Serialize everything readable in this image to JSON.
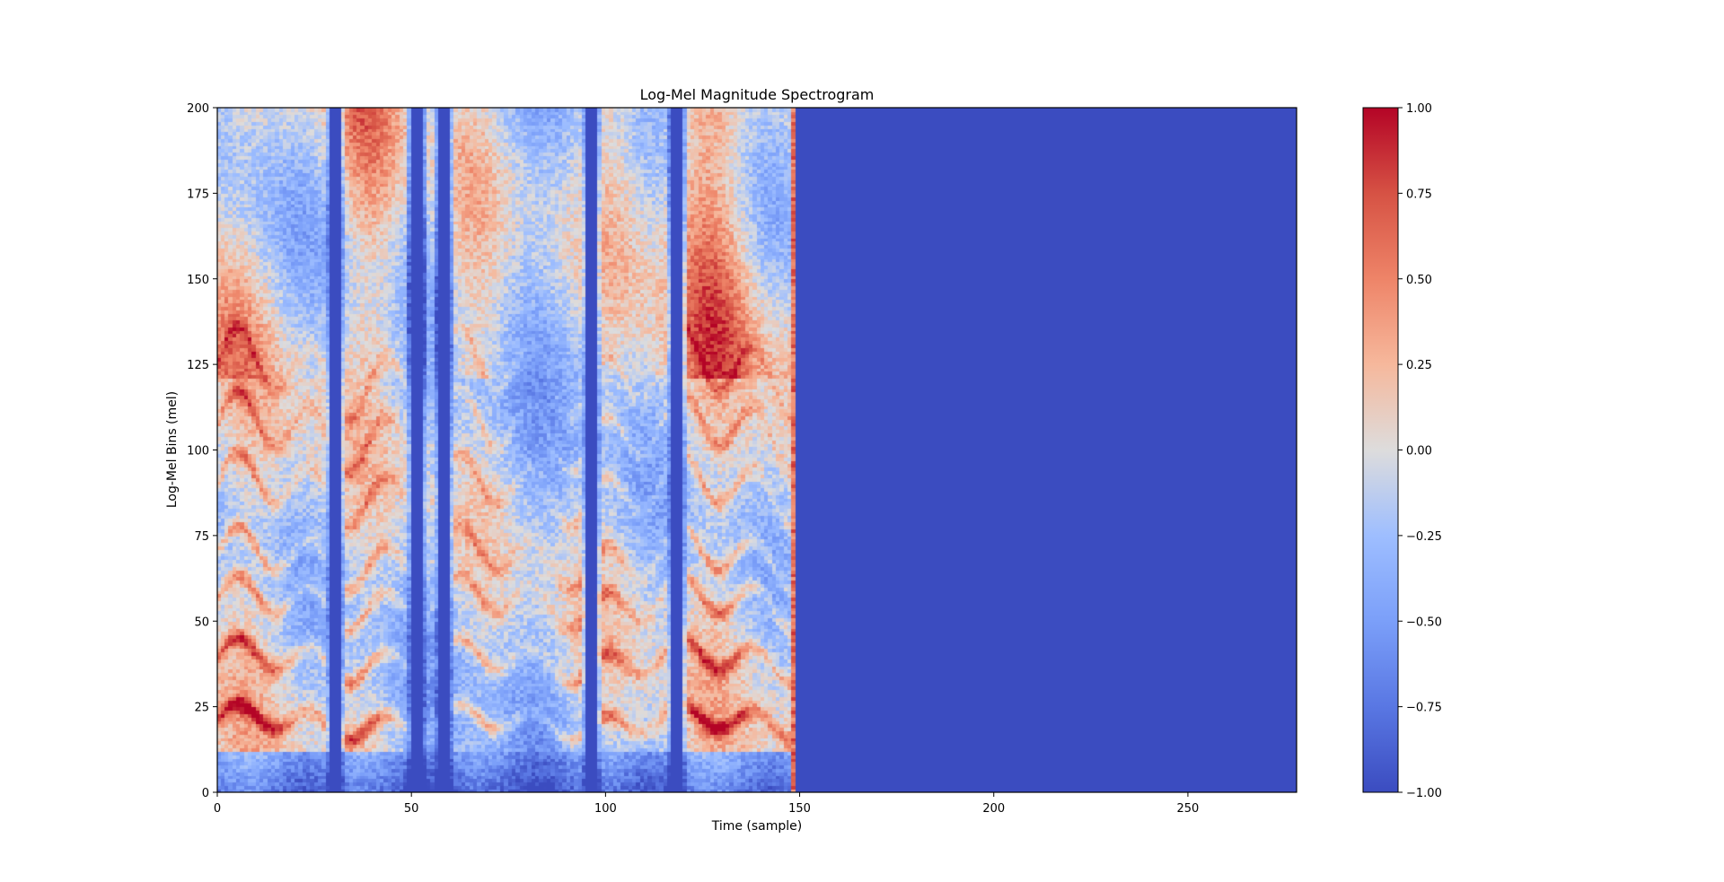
{
  "chart_data": {
    "type": "heatmap",
    "title": "Log-Mel Magnitude Spectrogram",
    "xlabel": "Time (sample)",
    "ylabel": "Log-Mel Bins (mel)",
    "xlim": [
      0,
      278
    ],
    "ylim": [
      0,
      200
    ],
    "x_ticks": [
      0,
      50,
      100,
      150,
      200,
      250
    ],
    "y_ticks": [
      0,
      25,
      50,
      75,
      100,
      125,
      150,
      175,
      200
    ],
    "x_tick_labels": [
      "0",
      "50",
      "100",
      "150",
      "200",
      "250"
    ],
    "y_tick_labels": [
      "0",
      "25",
      "50",
      "75",
      "100",
      "125",
      "150",
      "175",
      "200"
    ],
    "n_time_frames": 278,
    "n_mel_bins": 200,
    "active_frames": 149,
    "padding_value": -1.0,
    "colormap": "coolwarm",
    "colorbar": {
      "min": -1.0,
      "max": 1.0,
      "ticks": [
        -1.0,
        -0.75,
        -0.5,
        -0.25,
        0.0,
        0.25,
        0.5,
        0.75,
        1.0
      ],
      "tick_labels": [
        "−1.00",
        "−0.75",
        "−0.50",
        "−0.25",
        "0.00",
        "0.25",
        "0.50",
        "0.75",
        "1.00"
      ]
    },
    "colors": {
      "low": "#3b4cc0",
      "mid": "#dddddd",
      "high": "#b40426"
    },
    "formant_tracks": [
      {
        "bin": 20,
        "strength": 1.0
      },
      {
        "bin": 38,
        "strength": 0.85
      },
      {
        "bin": 55,
        "strength": 0.7
      },
      {
        "bin": 68,
        "strength": 0.65
      },
      {
        "bin": 88,
        "strength": 0.6
      },
      {
        "bin": 105,
        "strength": 0.55
      },
      {
        "bin": 122,
        "strength": 0.45
      }
    ],
    "silence_frames": [
      30,
      51,
      58,
      96,
      118
    ]
  }
}
